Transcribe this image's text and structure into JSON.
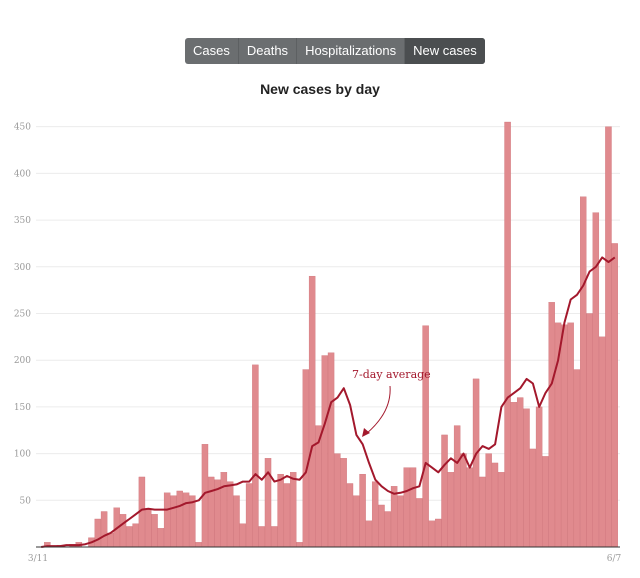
{
  "tabs": [
    {
      "label": "Cases",
      "active": false
    },
    {
      "label": "Deaths",
      "active": false
    },
    {
      "label": "Hospitalizations",
      "active": false
    },
    {
      "label": "New cases",
      "active": true
    }
  ],
  "chart_data": {
    "type": "bar",
    "title": "New cases by day",
    "xlabel": "",
    "ylabel": "",
    "x_tick_labels": [
      "3/11",
      "6/7"
    ],
    "y_ticks": [
      50,
      100,
      150,
      200,
      250,
      300,
      350,
      400,
      450
    ],
    "ylim": [
      0,
      470
    ],
    "grid": true,
    "annotation": "7-day average",
    "colors": {
      "bar": "#e08a8e",
      "average_line": "#a3182c",
      "grid": "#ececec"
    },
    "values": [
      0,
      5,
      0,
      2,
      0,
      3,
      5,
      0,
      10,
      30,
      38,
      15,
      42,
      35,
      22,
      25,
      75,
      40,
      35,
      20,
      58,
      55,
      60,
      58,
      55,
      5,
      110,
      75,
      72,
      80,
      70,
      55,
      25,
      68,
      195,
      22,
      95,
      22,
      78,
      68,
      80,
      5,
      190,
      290,
      130,
      205,
      208,
      100,
      95,
      68,
      55,
      78,
      28,
      70,
      45,
      38,
      65,
      55,
      85,
      85,
      52,
      237,
      28,
      30,
      120,
      80,
      130,
      100,
      85,
      180,
      75,
      100,
      90,
      80,
      455,
      155,
      160,
      148,
      105,
      150,
      97,
      262,
      240,
      238,
      240,
      190,
      375,
      250,
      358,
      225,
      450,
      325
    ],
    "series": [
      {
        "type": "line",
        "values": [
          0,
          1,
          1,
          1,
          2,
          2,
          2,
          3,
          5,
          8,
          12,
          15,
          20,
          25,
          30,
          35,
          40,
          41,
          40,
          40,
          40,
          42,
          44,
          47,
          48,
          50,
          58,
          60,
          62,
          65,
          66,
          67,
          70,
          70,
          78,
          72,
          80,
          70,
          72,
          76,
          73,
          72,
          80,
          108,
          112,
          132,
          155,
          160,
          170,
          152,
          120,
          110,
          90,
          72,
          65,
          60,
          57,
          58,
          60,
          63,
          65,
          90,
          85,
          80,
          88,
          95,
          90,
          100,
          85,
          100,
          108,
          105,
          110,
          150,
          160,
          165,
          170,
          180,
          175,
          150,
          165,
          175,
          200,
          240,
          265,
          270,
          280,
          295,
          300,
          310,
          305,
          310
        ]
      }
    ]
  }
}
